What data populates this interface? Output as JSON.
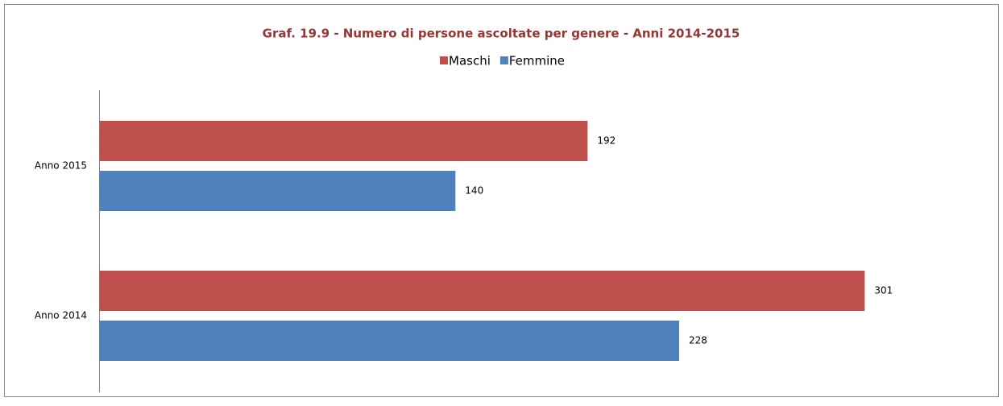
{
  "chart_data": {
    "type": "hbar",
    "title": "Graf. 19.9 - Numero di persone ascoltate per genere - Anni 2014-2015",
    "categories": [
      "Anno 2015",
      "Anno 2014"
    ],
    "series": [
      {
        "name": "Maschi",
        "color": "#c0504d",
        "values": [
          192,
          301
        ]
      },
      {
        "name": "Femmine",
        "color": "#4f81bd",
        "values": [
          140,
          228
        ]
      }
    ],
    "xlim": [
      0,
      350
    ],
    "legend": "top"
  }
}
